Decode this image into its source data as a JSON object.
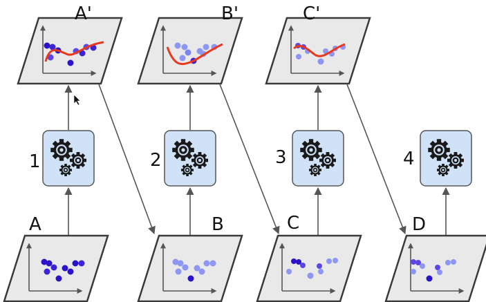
{
  "labels": {
    "top": [
      "A'",
      "B'",
      "C'"
    ],
    "bottom": [
      "A",
      "B",
      "C",
      "D"
    ],
    "steps": [
      "1",
      "2",
      "3",
      "4"
    ]
  },
  "colors": {
    "panel_fill": "#e9e9e9",
    "panel_stroke": "#3a3a3a",
    "gear_box_fill": "#cfe2f7",
    "gear_box_stroke": "#555555",
    "arrow": "#555555",
    "curve": "#e8391e",
    "dot_dark": "#2b13c9",
    "dot_mid": "#5a47e6",
    "dot_light": "#8d96f2"
  },
  "icons": [
    "gears-icon",
    "mouse-cursor-icon"
  ]
}
